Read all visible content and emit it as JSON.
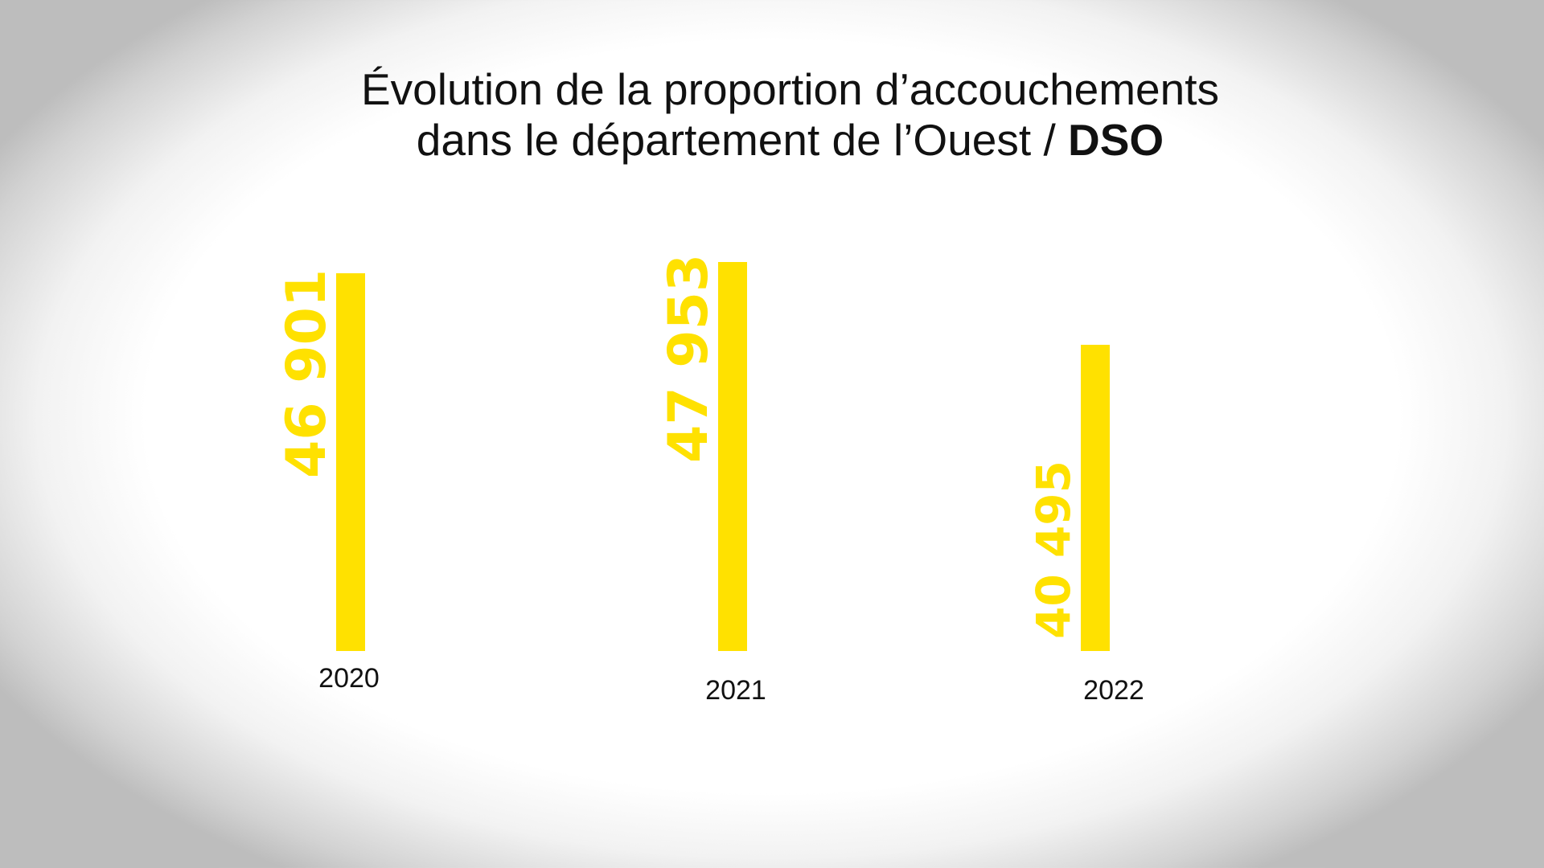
{
  "title": {
    "line1": "Évolution de la proportion d’accouchements",
    "line2_prefix": "dans le département de l’Ouest / ",
    "line2_bold": "DSO"
  },
  "colors": {
    "bar": "#FFE100",
    "text": "#111111"
  },
  "chart_data": {
    "type": "bar",
    "title": "Évolution de la proportion d’accouchements dans le département de l’Ouest / DSO",
    "categories": [
      "2020",
      "2021",
      "2022"
    ],
    "values": [
      46901,
      47953,
      40495
    ],
    "value_labels": [
      "46 901",
      "47 953",
      "40 495"
    ],
    "xlabel": "",
    "ylabel": "",
    "grid": false,
    "legend": "none"
  }
}
